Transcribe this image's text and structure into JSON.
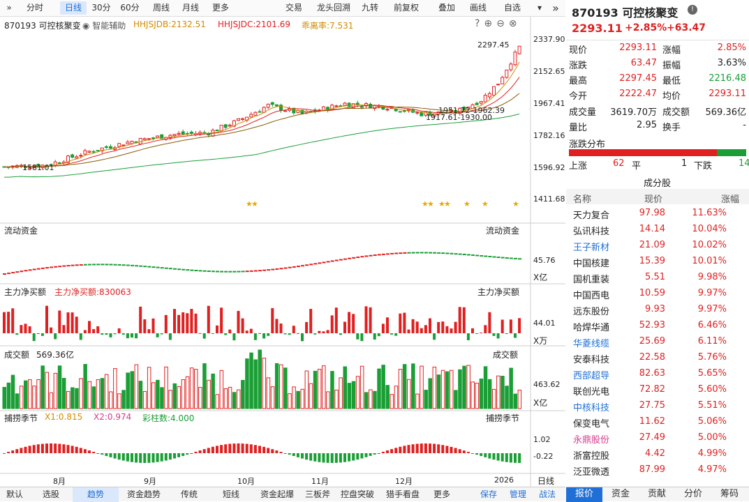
{
  "toolbar": {
    "left_items": [
      "分时",
      "日线",
      "30分",
      "60分",
      "周线",
      "月线",
      "更多"
    ],
    "active": "日线",
    "right_items": [
      "交易",
      "龙头回溯",
      "九转",
      "前复权",
      "叠加",
      "画线",
      "自选"
    ]
  },
  "chart_header": {
    "stock_name": "870193 可控核聚变",
    "assist": "智能辅助",
    "ind1": "HHJSJDB:2132.51",
    "ind2": "HHJSJDC:2101.69",
    "ind3": "乖离率:7.531"
  },
  "price_axis": [
    "2337.90",
    "2152.65",
    "1967.41",
    "1782.16",
    "1596.92",
    "1411.68"
  ],
  "annotations": {
    "high": "2297.45",
    "low": "1581.01",
    "mid1": "1951.72-1962.39",
    "mid2": "1917.61-1930.00"
  },
  "panels": {
    "flow": {
      "title": "流动资金",
      "title_r": "流动资金",
      "axis_val": "45.76",
      "unit": "X亿"
    },
    "net": {
      "title": "主力净买额",
      "sub": "主力净买额:830063",
      "title_r": "主力净买额",
      "axis_val": "44.01",
      "unit": "X万"
    },
    "vol": {
      "title": "成交额",
      "sub": "569.36亿",
      "title_r": "成交额",
      "axis_val": "463.62",
      "unit": "X亿"
    },
    "season": {
      "title": "捕捞季节",
      "x1": "X1:0.815",
      "x2": "X2:0.974",
      "cai": "彩柱数:4.000",
      "title_r": "捕捞季节",
      "axis_top": "1.02",
      "axis_bot": "-0.22"
    }
  },
  "time_axis": [
    "8月",
    "9月",
    "10月",
    "11月",
    "12月",
    "2026"
  ],
  "period_label": "日线",
  "bottom_tabs": [
    "默认",
    "选股",
    "趋势",
    "资金趋势",
    "传统",
    "短线",
    "资金起爆",
    "三板斧",
    "控盘突破",
    "猎手看盘",
    "更多",
    "保存",
    "管理",
    "战法"
  ],
  "bottom_active": "趋势",
  "quote": {
    "name": "870193 可控核聚变",
    "price": "2293.11",
    "pct": "+2.85%",
    "chg": "+63.47",
    "rows": [
      {
        "l1": "现价",
        "v1": "2293.11",
        "l2": "涨幅",
        "v2": "2.85%"
      },
      {
        "l1": "涨跌",
        "v1": "63.47",
        "l2": "振幅",
        "v2": "3.63%"
      },
      {
        "l1": "最高",
        "v1": "2297.45",
        "l2": "最低",
        "v2": "2216.48"
      },
      {
        "l1": "今开",
        "v1": "2222.47",
        "l2": "均价",
        "v2": "2293.11"
      },
      {
        "l1": "成交量",
        "v1": "3619.70万",
        "l2": "成交额",
        "v2": "569.36亿"
      },
      {
        "l1": "量比",
        "v1": "2.95",
        "l2": "换手",
        "v2": "-"
      }
    ],
    "dist_title": "涨跌分布",
    "up_label": "上涨",
    "up": "62",
    "flat_label": "平",
    "flat": "1",
    "down_label": "下跌",
    "down": "14",
    "components_title": "成分股",
    "col_name": "名称",
    "col_price": "现价",
    "col_pct": "涨幅"
  },
  "components": [
    {
      "name": "天力复合",
      "price": "97.98",
      "pct": "11.63%",
      "c": "default"
    },
    {
      "name": "弘讯科技",
      "price": "14.14",
      "pct": "10.04%",
      "c": "default"
    },
    {
      "name": "王子新材",
      "price": "21.09",
      "pct": "10.02%",
      "c": "blue"
    },
    {
      "name": "中国核建",
      "price": "15.39",
      "pct": "10.01%",
      "c": "default"
    },
    {
      "name": "国机重装",
      "price": "5.51",
      "pct": "9.98%",
      "c": "default"
    },
    {
      "name": "中国西电",
      "price": "10.59",
      "pct": "9.97%",
      "c": "default"
    },
    {
      "name": "远东股份",
      "price": "9.93",
      "pct": "9.97%",
      "c": "default"
    },
    {
      "name": "哈焊华通",
      "price": "52.93",
      "pct": "6.46%",
      "c": "default"
    },
    {
      "name": "华菱线缆",
      "price": "25.69",
      "pct": "6.11%",
      "c": "blue"
    },
    {
      "name": "安泰科技",
      "price": "22.58",
      "pct": "5.76%",
      "c": "default"
    },
    {
      "name": "西部超导",
      "price": "82.63",
      "pct": "5.65%",
      "c": "blue"
    },
    {
      "name": "联创光电",
      "price": "72.82",
      "pct": "5.60%",
      "c": "default"
    },
    {
      "name": "中核科技",
      "price": "27.75",
      "pct": "5.51%",
      "c": "blue"
    },
    {
      "name": "保变电气",
      "price": "11.62",
      "pct": "5.06%",
      "c": "default"
    },
    {
      "name": "永鼎股份",
      "price": "27.49",
      "pct": "5.00%",
      "c": "pink"
    },
    {
      "name": "浙富控股",
      "price": "4.42",
      "pct": "4.99%",
      "c": "default"
    },
    {
      "name": "泛亚微透",
      "price": "87.99",
      "pct": "4.97%",
      "c": "default"
    }
  ],
  "right_tabs": [
    "报价",
    "资金",
    "贡献",
    "分价",
    "筹码"
  ],
  "right_active": "报价",
  "colors": {
    "up": "#e02020",
    "down": "#1a9e35",
    "accent": "#1f6fd6"
  }
}
